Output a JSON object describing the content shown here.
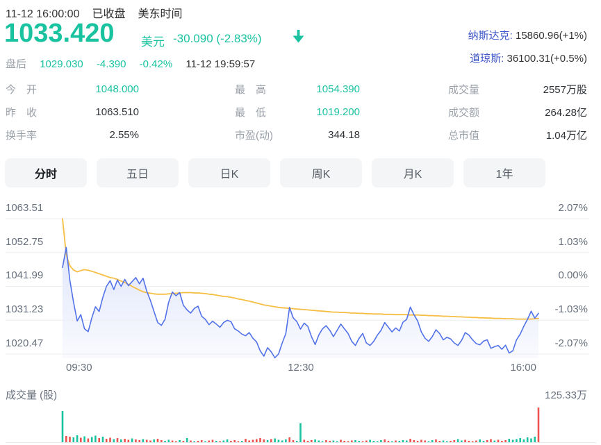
{
  "colors": {
    "green": "#19C3A0",
    "red": "#EF5350",
    "blue_line": "#5272E9",
    "yellow_line": "#F6BE43",
    "link_blue": "#3D55C8",
    "grid": "#EAEDF1",
    "tab_bg": "#F4F5F6"
  },
  "header": {
    "datetime": "11-12 16:00:00",
    "market_status": "已收盘",
    "timezone": "美东时间",
    "price": "1033.420",
    "currency": "美元",
    "change": "-30.090 (-2.83%)",
    "after_hours": {
      "label": "盘后",
      "price": "1029.030",
      "change": "-4.390",
      "change_pct": "-0.42%",
      "time": "11-12 19:59:57"
    },
    "indices": [
      {
        "name": "纳斯达克:",
        "value": "15860.96(+1%)"
      },
      {
        "name": "道琼斯:",
        "value": "36100.31(+0.5%)"
      }
    ]
  },
  "stats": {
    "columns": [
      {
        "rows": [
          {
            "label": "今　开",
            "value": "1048.000"
          },
          {
            "label": "昨　收",
            "value": "1063.510"
          },
          {
            "label": "换手率",
            "value": "2.55%"
          }
        ]
      },
      {
        "rows": [
          {
            "label": "最　高",
            "value": "1054.390"
          },
          {
            "label": "最　低",
            "value": "1019.200"
          },
          {
            "label": "市盈(动)",
            "value": "344.18"
          }
        ]
      },
      {
        "rows": [
          {
            "label": "成交量",
            "value": "2557万股"
          },
          {
            "label": "成交额",
            "value": "264.28亿"
          },
          {
            "label": "总市值",
            "value": "1.04万亿"
          }
        ]
      }
    ]
  },
  "tabs": {
    "items": [
      {
        "label": "分时",
        "active": true
      },
      {
        "label": "五日",
        "active": false
      },
      {
        "label": "日K",
        "active": false
      },
      {
        "label": "周K",
        "active": false
      },
      {
        "label": "月K",
        "active": false
      },
      {
        "label": "1年",
        "active": false
      }
    ]
  },
  "chart_data": {
    "type": "line",
    "title": "分时走势图",
    "x_labels": [
      "09:30",
      "12:30",
      "16:00"
    ],
    "y_axis_left": [
      "1063.51",
      "1052.75",
      "1041.99",
      "1031.23",
      "1020.47"
    ],
    "y_axis_right": [
      "2.07%",
      "1.03%",
      "0.00%",
      "-1.03%",
      "-2.07%"
    ],
    "y_range": [
      1020.47,
      1063.51
    ],
    "grid": true,
    "series": [
      {
        "name": "price",
        "color_key": "blue_line",
        "values": [
          1048.0,
          1054.4,
          1044.0,
          1037.0,
          1031.0,
          1033.0,
          1028.5,
          1027.6,
          1032.0,
          1035.5,
          1034.0,
          1038.5,
          1042.0,
          1043.8,
          1041.0,
          1044.0,
          1042.0,
          1044.2,
          1042.2,
          1043.5,
          1044.8,
          1042.8,
          1044.6,
          1040.5,
          1037.5,
          1034.0,
          1030.5,
          1029.6,
          1031.5,
          1037.0,
          1040.2,
          1039.0,
          1040.0,
          1036.0,
          1034.5,
          1033.5,
          1035.0,
          1035.7,
          1032.5,
          1031.5,
          1029.8,
          1030.9,
          1030.0,
          1029.0,
          1030.5,
          1031.2,
          1030.8,
          1028.5,
          1027.8,
          1026.8,
          1026.3,
          1027.3,
          1025.5,
          1024.3,
          1021.5,
          1019.8,
          1022.5,
          1021.2,
          1019.3,
          1020.5,
          1024.0,
          1027.0,
          1035.3,
          1032.0,
          1030.8,
          1028.4,
          1030.3,
          1029.3,
          1026.0,
          1023.5,
          1026.5,
          1028.5,
          1029.5,
          1028.0,
          1026.0,
          1028.0,
          1030.0,
          1028.5,
          1027.0,
          1024.5,
          1023.2,
          1025.5,
          1027.0,
          1024.0,
          1023.2,
          1024.5,
          1026.5,
          1028.0,
          1030.5,
          1029.0,
          1027.5,
          1028.8,
          1027.8,
          1030.6,
          1031.5,
          1035.4,
          1033.0,
          1031.0,
          1027.5,
          1025.5,
          1024.5,
          1026.0,
          1028.2,
          1027.0,
          1025.0,
          1025.8,
          1025.3,
          1024.0,
          1023.2,
          1024.8,
          1027.3,
          1026.5,
          1025.0,
          1023.8,
          1023.4,
          1024.6,
          1025.0,
          1022.3,
          1022.8,
          1023.2,
          1022.0,
          1023.3,
          1020.8,
          1021.5,
          1025.0,
          1026.8,
          1029.3,
          1031.5,
          1034.1,
          1031.9,
          1033.4
        ]
      },
      {
        "name": "avg_price",
        "color_key": "yellow_line",
        "values": [
          1063.5,
          1052.0,
          1048.6,
          1047.2,
          1046.6,
          1047.0,
          1047.3,
          1047.1,
          1046.8,
          1046.4,
          1046.0,
          1045.6,
          1045.2,
          1044.8,
          1044.6,
          1044.2,
          1043.7,
          1043.2,
          1042.6,
          1042.0,
          1041.4,
          1040.8,
          1040.3,
          1040.0,
          1039.8,
          1039.6,
          1039.5,
          1039.5,
          1039.5,
          1039.6,
          1039.7,
          1039.8,
          1039.9,
          1040.0,
          1040.0,
          1040.0,
          1039.9,
          1039.9,
          1039.8,
          1039.7,
          1039.5,
          1039.4,
          1039.2,
          1039.0,
          1038.8,
          1038.7,
          1038.5,
          1038.3,
          1038.0,
          1037.8,
          1037.5,
          1037.3,
          1037.0,
          1036.7,
          1036.4,
          1036.1,
          1035.9,
          1035.7,
          1035.5,
          1035.3,
          1035.2,
          1035.1,
          1035.0,
          1034.9,
          1034.8,
          1034.7,
          1034.6,
          1034.5,
          1034.4,
          1034.3,
          1034.2,
          1034.1,
          1034.0,
          1033.9,
          1033.8,
          1033.8,
          1033.7,
          1033.7,
          1033.6,
          1033.5,
          1033.5,
          1033.4,
          1033.4,
          1033.3,
          1033.3,
          1033.2,
          1033.2,
          1033.2,
          1033.1,
          1033.1,
          1033.1,
          1033.0,
          1033.0,
          1033.0,
          1033.0,
          1032.9,
          1032.9,
          1032.9,
          1032.8,
          1032.8,
          1032.7,
          1032.7,
          1032.6,
          1032.6,
          1032.5,
          1032.5,
          1032.4,
          1032.4,
          1032.3,
          1032.3,
          1032.2,
          1032.2,
          1032.1,
          1032.1,
          1032.0,
          1032.0,
          1031.9,
          1031.9,
          1031.8,
          1031.8,
          1031.8,
          1031.7,
          1031.7,
          1031.7,
          1031.6,
          1031.6,
          1031.6,
          1031.6,
          1031.6,
          1031.7,
          1031.8
        ]
      }
    ],
    "volume": {
      "label": "成交量 (股)",
      "max_label": "125.33万",
      "values": [
        90,
        18,
        16,
        14,
        20,
        13,
        17,
        11,
        15,
        19,
        12,
        16,
        10,
        13,
        9,
        12,
        8,
        10,
        7,
        11,
        8,
        6,
        9,
        7,
        5,
        8,
        10,
        6,
        4,
        7,
        5,
        3,
        6,
        4,
        12,
        5,
        3,
        4,
        6,
        3,
        5,
        7,
        4,
        3,
        5,
        8,
        4,
        6,
        3,
        4,
        10,
        5,
        7,
        9,
        12,
        8,
        6,
        9,
        11,
        7,
        5,
        8,
        14,
        6,
        4,
        55,
        7,
        4,
        6,
        8,
        5,
        3,
        6,
        4,
        5,
        3,
        7,
        4,
        3,
        5,
        6,
        4,
        3,
        5,
        7,
        4,
        3,
        6,
        8,
        4,
        3,
        5,
        4,
        6,
        5,
        10,
        6,
        4,
        7,
        5,
        3,
        6,
        8,
        4,
        5,
        3,
        4,
        6,
        9,
        5,
        7,
        4,
        3,
        5,
        8,
        4,
        6,
        9,
        5,
        7,
        4,
        6,
        10,
        7,
        9,
        12,
        8,
        14,
        11,
        16,
        100
      ],
      "colors": "grrggrgrggrgrrgrgrrgrrgrrgrrggrrgrgrgrrgrrgrggrrrgrrrrrrgrggggrrggrrrgggrrggrrrrggrrggggrrgrgggrrrrrggrrggrrggrrrrggrrgrrrgggggggg"
    }
  }
}
